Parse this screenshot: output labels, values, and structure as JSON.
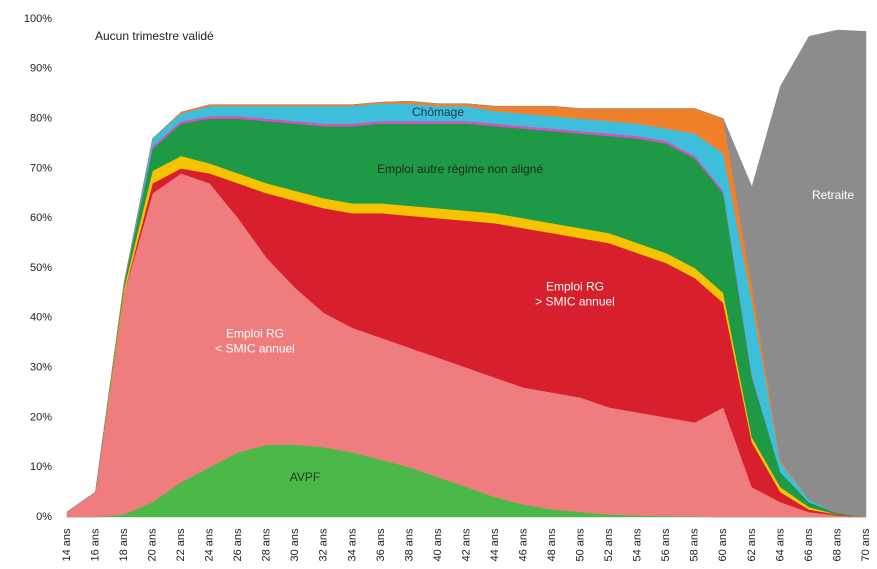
{
  "chart_data": {
    "type": "stacked_area",
    "annotations": [
      "Aucun trimestre validé"
    ],
    "categories": [
      "14 ans",
      "16 ans",
      "18 ans",
      "20 ans",
      "22 ans",
      "24 ans",
      "26 ans",
      "28 ans",
      "30 ans",
      "32 ans",
      "34 ans",
      "36 ans",
      "38 ans",
      "40 ans",
      "42 ans",
      "44 ans",
      "46 ans",
      "48 ans",
      "50 ans",
      "52 ans",
      "54 ans",
      "56 ans",
      "58 ans",
      "60 ans",
      "62 ans",
      "64 ans",
      "66 ans",
      "68 ans",
      "70 ans"
    ],
    "series": [
      {
        "name": "AVPF",
        "color": "#4cb847",
        "values": [
          0,
          0,
          0.5,
          3,
          7,
          10,
          13,
          14.5,
          14.5,
          14,
          13,
          11.5,
          10,
          8,
          6,
          4,
          2.5,
          1.5,
          1,
          0.5,
          0.3,
          0.2,
          0.1,
          0,
          0,
          0,
          0,
          0,
          0
        ]
      },
      {
        "name": "Emploi RG\n< SMIC annuel",
        "color": "#ef7d7d",
        "values": [
          1,
          5,
          44.5,
          62,
          62,
          57,
          47,
          37.5,
          31.5,
          27,
          25,
          24.5,
          24,
          24,
          24,
          24,
          23.5,
          23.5,
          23,
          21.5,
          20.7,
          19.8,
          18.9,
          22,
          6,
          3,
          1,
          0.3,
          0
        ]
      },
      {
        "name": "Emploi RG\n> SMIC annuel",
        "color": "#d81f2d",
        "values": [
          0,
          0,
          0,
          2,
          1,
          2,
          7,
          13,
          17.5,
          21,
          23,
          25,
          26.5,
          28,
          29.5,
          31,
          32,
          32,
          32,
          33,
          32,
          31,
          29,
          21,
          9,
          2,
          0.5,
          0.2,
          0
        ]
      },
      {
        "color": "#f5c300",
        "values": [
          0,
          0,
          1,
          2.5,
          2.5,
          2,
          2,
          2,
          2,
          2,
          2,
          2,
          2,
          2,
          2,
          2,
          2,
          2,
          2,
          2,
          2,
          2,
          2,
          2,
          1,
          1,
          0.5,
          0,
          0
        ]
      },
      {
        "name": "Emploi autre régime non aligné",
        "color": "#1e9a46",
        "values": [
          0,
          0,
          1,
          4.5,
          6.5,
          9,
          11,
          12.5,
          13.5,
          14.5,
          15.5,
          16,
          16.5,
          17,
          17.5,
          17.5,
          18,
          18.5,
          19,
          19.5,
          21,
          22,
          22,
          20,
          12,
          3,
          1,
          0.3,
          0
        ]
      },
      {
        "color": "#d94fc2",
        "values": [
          0,
          0,
          0,
          0.5,
          0.5,
          0.5,
          0.5,
          0.5,
          0.5,
          0.5,
          0.5,
          0.5,
          0.5,
          0.5,
          0.5,
          0.5,
          0.5,
          0.5,
          0.5,
          0.5,
          0.5,
          0.5,
          0.5,
          0.5,
          0.3,
          0,
          0,
          0,
          0
        ]
      },
      {
        "name": "Chômage",
        "color": "#3dbfdb",
        "values": [
          0,
          0,
          0,
          1.5,
          1.5,
          2,
          2,
          2.5,
          3,
          3.5,
          3.5,
          3.5,
          3.5,
          3,
          3,
          2.5,
          2.5,
          2.5,
          2.5,
          2.5,
          2.5,
          2.5,
          4.5,
          7.5,
          15,
          2,
          0.5,
          0,
          0
        ]
      },
      {
        "color": "#f0802a",
        "values": [
          0,
          0,
          0,
          0,
          0.3,
          0.3,
          0.3,
          0.3,
          0.3,
          0.3,
          0.3,
          0.3,
          0.5,
          0.5,
          0.5,
          1,
          1.5,
          2,
          2,
          2.5,
          3,
          4,
          5,
          7,
          3,
          0.5,
          0,
          0,
          0
        ]
      },
      {
        "name": "Retraite",
        "color": "#8c8c8c",
        "values": [
          0,
          0,
          0,
          0,
          0,
          0,
          0,
          0,
          0,
          0,
          0,
          0,
          0,
          0,
          0,
          0,
          0,
          0,
          0,
          0,
          0,
          0,
          0,
          0,
          20,
          75,
          93,
          97,
          97.5
        ]
      }
    ],
    "ylim": [
      0,
      100
    ],
    "yticks": [
      {
        "value": 0,
        "label": "0%"
      },
      {
        "value": 10,
        "label": "10%"
      },
      {
        "value": 20,
        "label": "20%"
      },
      {
        "value": 30,
        "label": "30%"
      },
      {
        "value": 40,
        "label": "40%"
      },
      {
        "value": 50,
        "label": "50%"
      },
      {
        "value": 60,
        "label": "60%"
      },
      {
        "value": 70,
        "label": "70%"
      },
      {
        "value": 80,
        "label": "80%"
      },
      {
        "value": 90,
        "label": "90%"
      },
      {
        "value": 100,
        "label": "100%"
      }
    ]
  }
}
